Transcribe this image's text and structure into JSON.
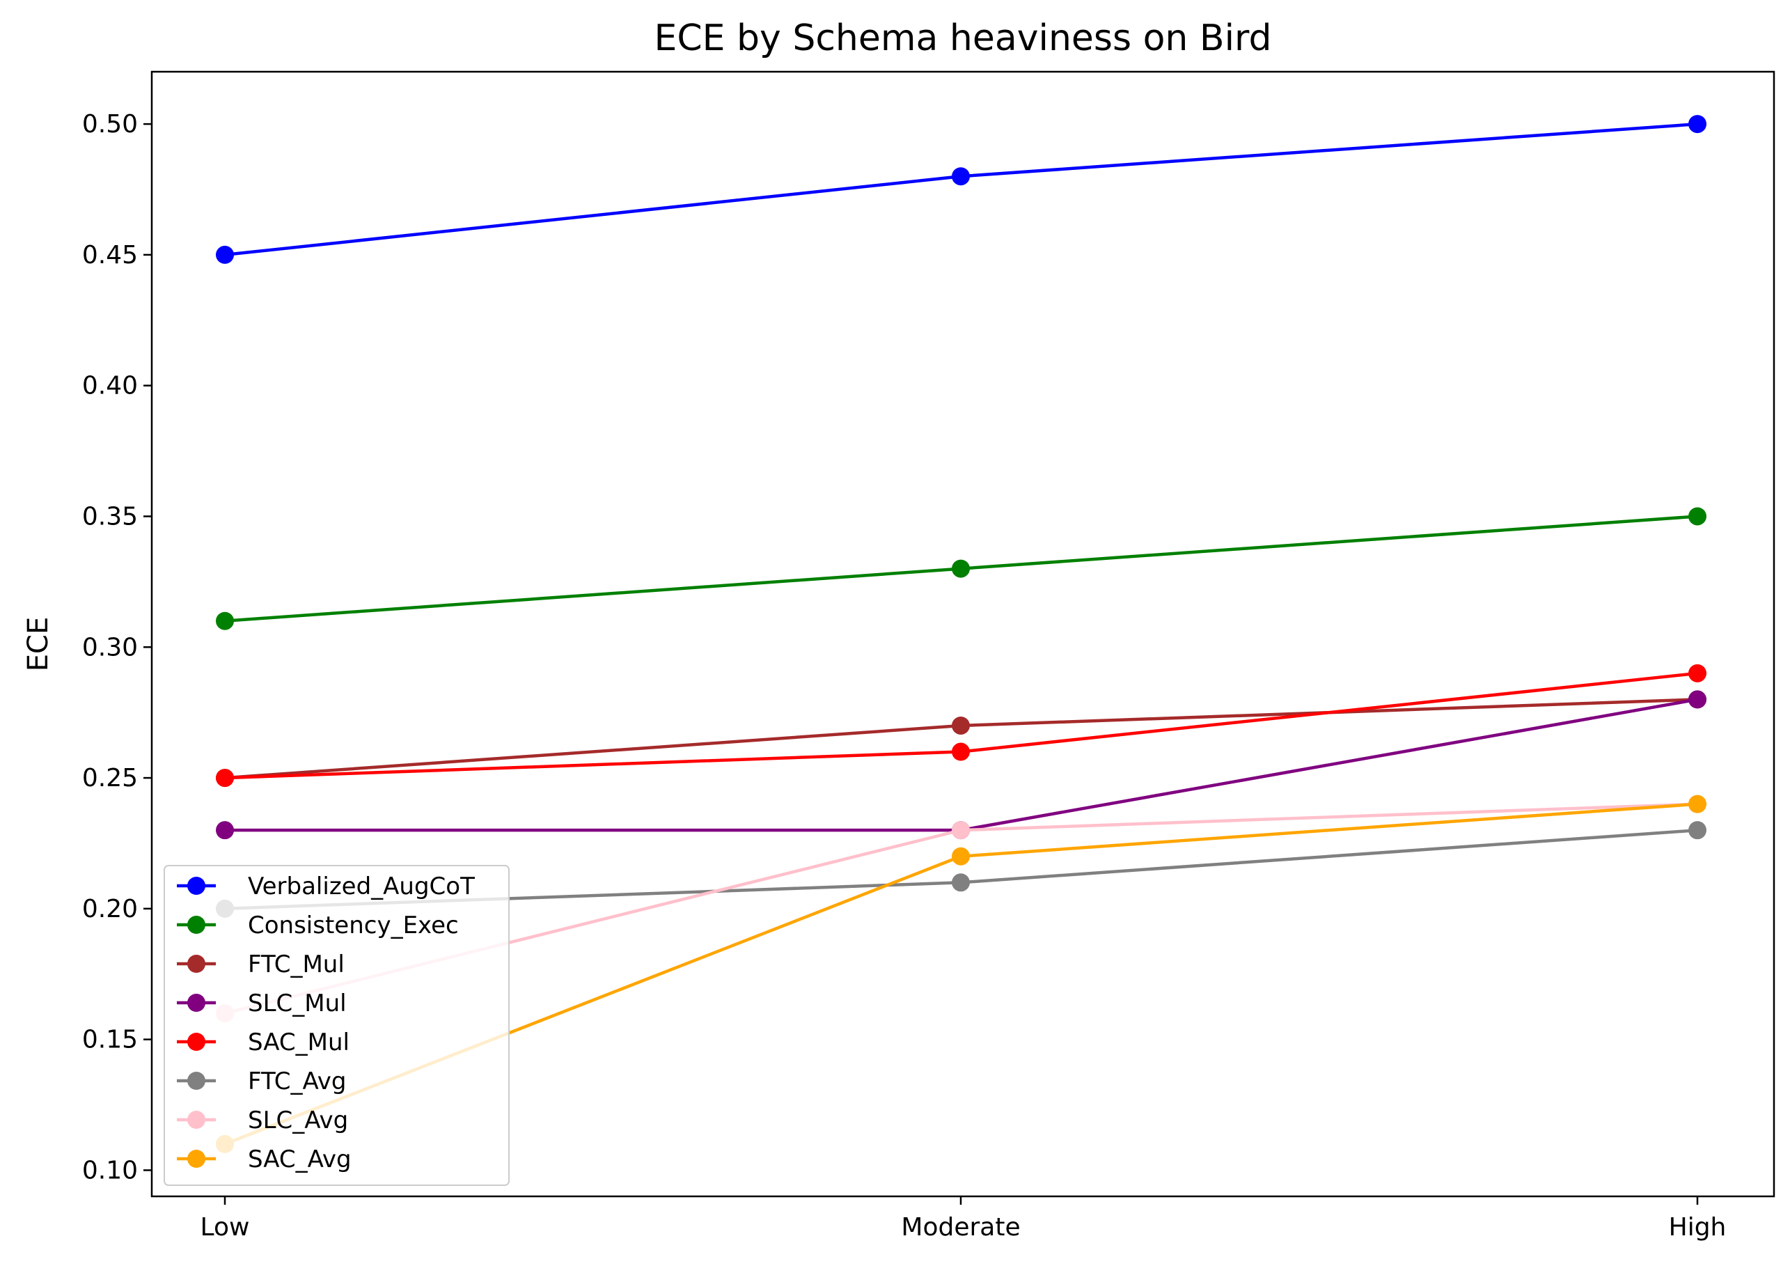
{
  "chart_data": {
    "type": "line",
    "title": "ECE by Schema heaviness on Bird",
    "xlabel": "",
    "ylabel": "ECE",
    "categories": [
      "Low",
      "Moderate",
      "High"
    ],
    "ylim": [
      0.09,
      0.52
    ],
    "yticks": [
      0.1,
      0.15,
      0.2,
      0.25,
      0.3,
      0.35,
      0.4,
      0.45,
      0.5
    ],
    "ytick_labels": [
      "0.10",
      "0.15",
      "0.20",
      "0.25",
      "0.30",
      "0.35",
      "0.40",
      "0.45",
      "0.50"
    ],
    "grid": false,
    "legend_position": "lower-left",
    "series": [
      {
        "name": "Verbalized_AugCoT",
        "color": "#0000ff",
        "values": [
          0.45,
          0.48,
          0.5
        ]
      },
      {
        "name": "Consistency_Exec",
        "color": "#008000",
        "values": [
          0.31,
          0.33,
          0.35
        ]
      },
      {
        "name": "FTC_Mul",
        "color": "#a52a2a",
        "values": [
          0.25,
          0.27,
          0.28
        ]
      },
      {
        "name": "SLC_Mul",
        "color": "#800080",
        "values": [
          0.23,
          0.23,
          0.28
        ]
      },
      {
        "name": "SAC_Mul",
        "color": "#ff0000",
        "values": [
          0.25,
          0.26,
          0.29
        ]
      },
      {
        "name": "FTC_Avg",
        "color": "#808080",
        "values": [
          0.2,
          0.21,
          0.23
        ]
      },
      {
        "name": "SLC_Avg",
        "color": "#ffc0cb",
        "values": [
          0.16,
          0.23,
          0.24
        ]
      },
      {
        "name": "SAC_Avg",
        "color": "#ffa500",
        "values": [
          0.11,
          0.22,
          0.24
        ]
      }
    ]
  }
}
